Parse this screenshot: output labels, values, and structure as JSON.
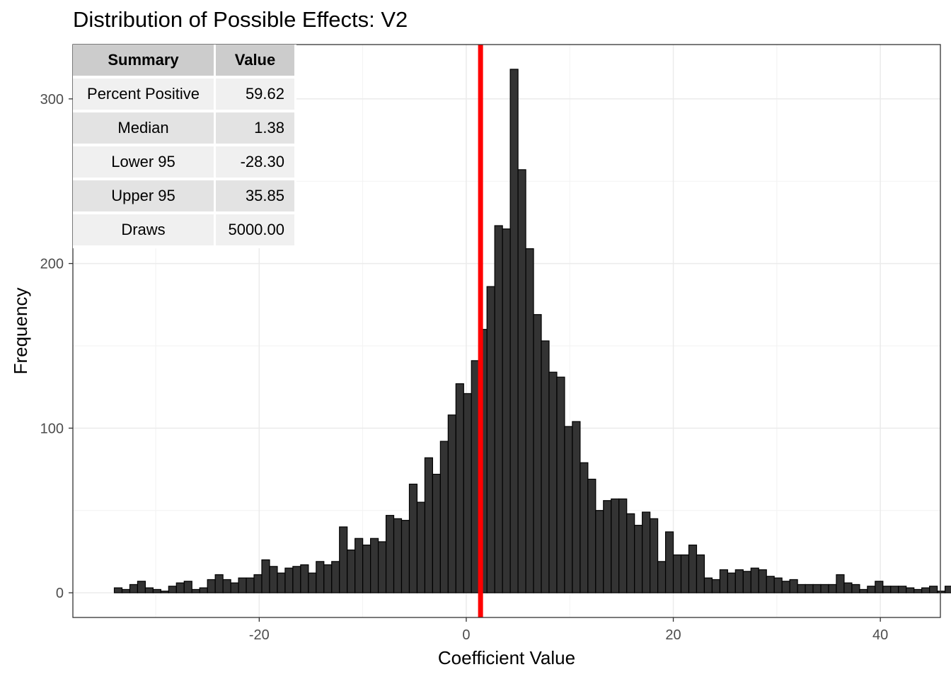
{
  "chart_data": {
    "type": "bar",
    "title": "Distribution of Possible Effects: V2",
    "xlabel": "Coefficient Value",
    "ylabel": "Frequency",
    "xlim": [
      -38,
      45.8
    ],
    "ylim": [
      -15,
      333
    ],
    "x_ticks": [
      -20,
      0,
      20,
      40
    ],
    "y_ticks": [
      0,
      100,
      200,
      300
    ],
    "grid": true,
    "bin_start": -34.0,
    "bin_width": 0.75,
    "counts": [
      3,
      2,
      5,
      7,
      3,
      2,
      1,
      4,
      6,
      7,
      2,
      3,
      8,
      11,
      8,
      6,
      9,
      9,
      11,
      20,
      16,
      12,
      15,
      16,
      17,
      12,
      19,
      17,
      19,
      40,
      26,
      33,
      29,
      33,
      31,
      47,
      45,
      44,
      66,
      55,
      82,
      72,
      92,
      108,
      127,
      121,
      141,
      160,
      186,
      223,
      221,
      318,
      257,
      209,
      169,
      153,
      134,
      131,
      101,
      104,
      79,
      69,
      50,
      56,
      57,
      57,
      48,
      41,
      49,
      45,
      19,
      37,
      23,
      23,
      29,
      23,
      9,
      8,
      14,
      12,
      14,
      13,
      15,
      14,
      10,
      9,
      7,
      8,
      5,
      5,
      5,
      5,
      5,
      11,
      6,
      5,
      2,
      4,
      7,
      4,
      4,
      4,
      3,
      2,
      3,
      4,
      1,
      4
    ],
    "median_line": {
      "x": 1.38,
      "color": "#ff0000"
    },
    "bar_fill": "#333333",
    "bar_stroke": "#000000"
  },
  "summary_table": {
    "headers": {
      "summary": "Summary",
      "value": "Value"
    },
    "rows": [
      {
        "label": "Percent Positive",
        "value": "59.62"
      },
      {
        "label": "Median",
        "value": "1.38"
      },
      {
        "label": "Lower 95",
        "value": "-28.30"
      },
      {
        "label": "Upper 95",
        "value": "35.85"
      },
      {
        "label": "Draws",
        "value": "5000.00"
      }
    ]
  }
}
